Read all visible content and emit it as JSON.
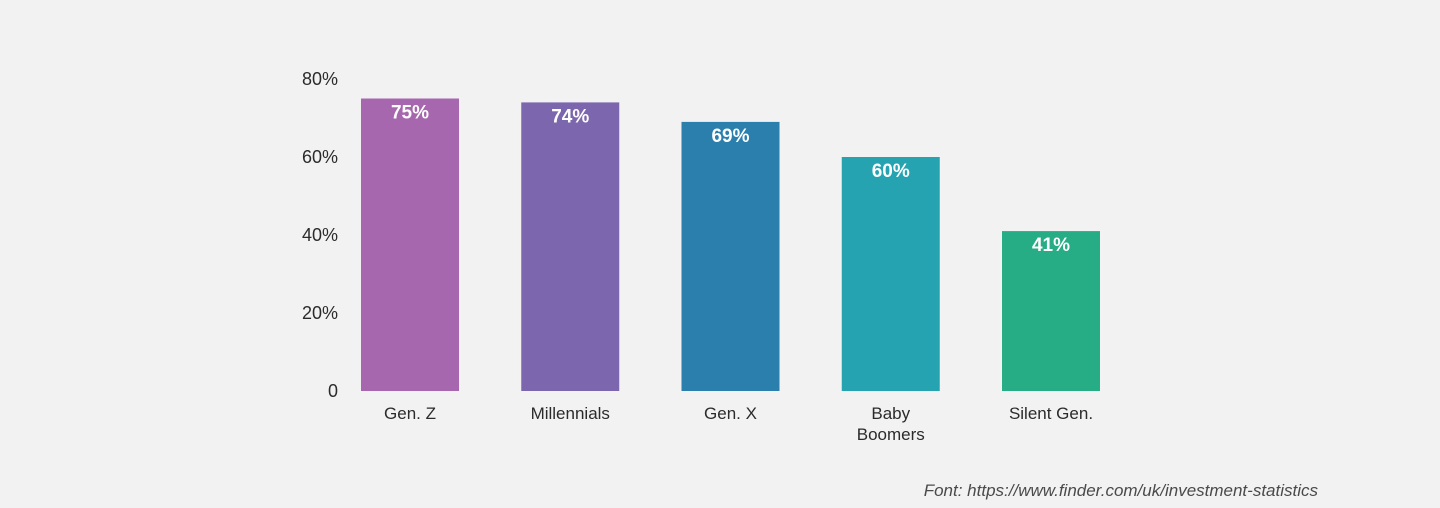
{
  "chart_data": {
    "type": "bar",
    "categories": [
      [
        "Gen. Z"
      ],
      [
        "Millennials"
      ],
      [
        "Gen. X"
      ],
      [
        "Baby",
        "Boomers"
      ],
      [
        "Silent Gen."
      ]
    ],
    "values": [
      75,
      74,
      69,
      60,
      41
    ],
    "data_labels": [
      "75%",
      "74%",
      "69%",
      "60%",
      "41%"
    ],
    "colors": [
      "#a767ae",
      "#7c67ae",
      "#2a7fad",
      "#26a3b0",
      "#26ad85"
    ],
    "yticks": [
      0,
      20,
      40,
      60,
      80
    ],
    "ytick_labels": [
      "0",
      "20%",
      "40%",
      "60%",
      "80%"
    ],
    "ylim": [
      0,
      80
    ],
    "grid": false,
    "legend": "none",
    "source": "Font: https://www.finder.com/uk/investment-statistics"
  }
}
